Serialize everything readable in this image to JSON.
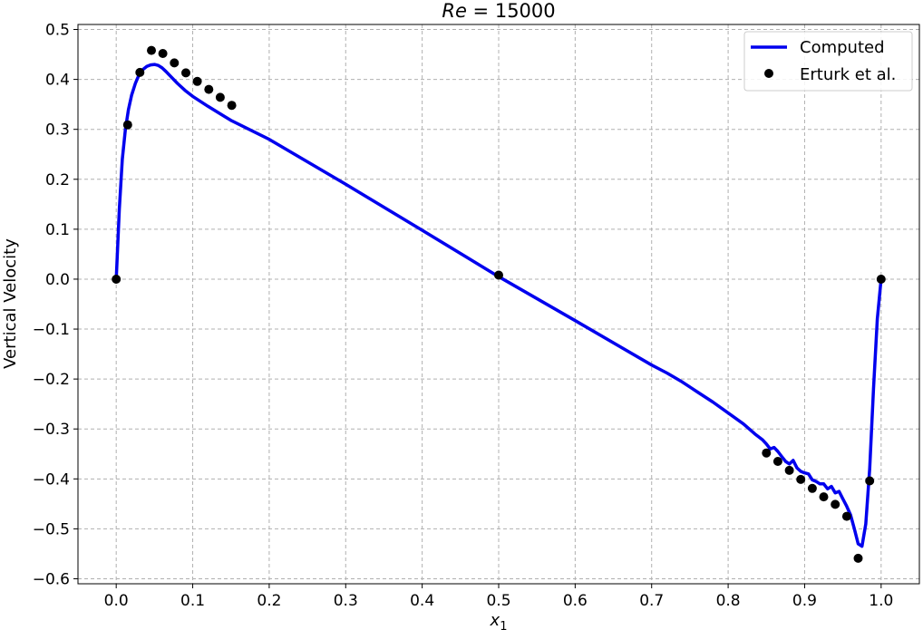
{
  "chart_data": {
    "type": "line",
    "title": "Re = 15000",
    "title_parts": {
      "var": "Re",
      "eq": " = ",
      "value": "15000"
    },
    "xlabel": "x",
    "xlabel_sub": "1",
    "ylabel": "Vertical Velocity",
    "xlim": [
      -0.05,
      1.05
    ],
    "ylim": [
      -0.61,
      0.51
    ],
    "xticks": [
      0.0,
      0.1,
      0.2,
      0.3,
      0.4,
      0.5,
      0.6,
      0.7,
      0.8,
      0.9,
      1.0
    ],
    "yticks": [
      -0.6,
      -0.5,
      -0.4,
      -0.3,
      -0.2,
      -0.1,
      0.0,
      0.1,
      0.2,
      0.3,
      0.4,
      0.5
    ],
    "grid": true,
    "legend_position": "top-right",
    "series": [
      {
        "name": "Computed",
        "kind": "line",
        "color": "#0000ee",
        "x": [
          0.0,
          0.004,
          0.008,
          0.012,
          0.016,
          0.02,
          0.025,
          0.03,
          0.035,
          0.04,
          0.045,
          0.05,
          0.055,
          0.06,
          0.065,
          0.07,
          0.08,
          0.09,
          0.1,
          0.12,
          0.15,
          0.2,
          0.3,
          0.4,
          0.5,
          0.6,
          0.7,
          0.72,
          0.74,
          0.76,
          0.78,
          0.8,
          0.82,
          0.835,
          0.845,
          0.85,
          0.855,
          0.86,
          0.865,
          0.87,
          0.875,
          0.88,
          0.885,
          0.89,
          0.895,
          0.9,
          0.905,
          0.91,
          0.915,
          0.92,
          0.925,
          0.93,
          0.935,
          0.94,
          0.945,
          0.95,
          0.955,
          0.96,
          0.965,
          0.97,
          0.975,
          0.98,
          0.985,
          0.99,
          0.995,
          1.0
        ],
        "y": [
          0.0,
          0.14,
          0.24,
          0.3,
          0.34,
          0.368,
          0.392,
          0.41,
          0.42,
          0.426,
          0.429,
          0.43,
          0.428,
          0.423,
          0.416,
          0.408,
          0.392,
          0.378,
          0.366,
          0.346,
          0.318,
          0.28,
          0.19,
          0.098,
          0.005,
          -0.083,
          -0.172,
          -0.188,
          -0.206,
          -0.226,
          -0.246,
          -0.268,
          -0.29,
          -0.31,
          -0.322,
          -0.33,
          -0.34,
          -0.337,
          -0.345,
          -0.355,
          -0.365,
          -0.37,
          -0.363,
          -0.378,
          -0.385,
          -0.388,
          -0.39,
          -0.402,
          -0.405,
          -0.41,
          -0.41,
          -0.42,
          -0.415,
          -0.428,
          -0.425,
          -0.44,
          -0.455,
          -0.472,
          -0.5,
          -0.53,
          -0.535,
          -0.49,
          -0.38,
          -0.22,
          -0.08,
          0.0
        ]
      },
      {
        "name": "Erturk et al.",
        "kind": "scatter",
        "color": "#000000",
        "x": [
          0.0,
          0.015,
          0.031,
          0.046,
          0.061,
          0.076,
          0.091,
          0.106,
          0.121,
          0.136,
          0.151,
          0.5,
          0.85,
          0.865,
          0.88,
          0.895,
          0.91,
          0.925,
          0.94,
          0.955,
          0.97,
          0.985,
          1.0
        ],
        "y": [
          0.0,
          0.309,
          0.414,
          0.458,
          0.452,
          0.433,
          0.413,
          0.396,
          0.38,
          0.364,
          0.348,
          0.008,
          -0.348,
          -0.365,
          -0.383,
          -0.401,
          -0.419,
          -0.436,
          -0.451,
          -0.475,
          -0.559,
          -0.404,
          0.0
        ]
      }
    ]
  }
}
